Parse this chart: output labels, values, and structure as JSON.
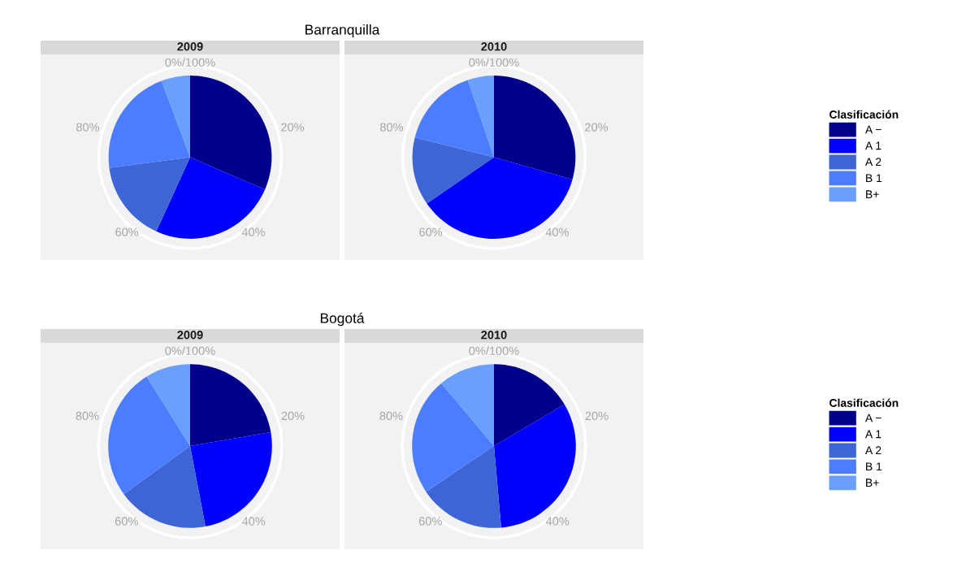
{
  "chart_data": [
    {
      "type": "pie",
      "title": "Barranquilla",
      "subtitle": "2009",
      "categories": [
        null,
        null,
        null,
        null,
        null
      ],
      "values": [
        31.5,
        25.3,
        16.1,
        21.4,
        5.7
      ],
      "colors": [
        "#00008b",
        "#0000ff",
        "#3d65d6",
        "#4d7dff",
        "#6b9fff"
      ],
      "annotations": [
        "0%/100%",
        "20%",
        "40%",
        "60%",
        "80%"
      ]
    },
    {
      "type": "pie",
      "subtitle": "2010",
      "categories": [
        "A −",
        "A 1",
        "A 2",
        "B 1",
        "B+"
      ],
      "values": [
        29.4,
        36.0,
        13.5,
        15.9,
        5.2
      ],
      "colors": [
        "#00008b",
        "#0000ff",
        "#3d65d6",
        "#4d7dff",
        "#6b9fff"
      ],
      "annotations": [
        "0%/100%",
        "20%",
        "40%",
        "60%",
        "80%"
      ],
      "legend": "right",
      "legend_title": "Clasificación"
    },
    {
      "type": "pie",
      "title": "Bogotá",
      "subtitle": "2009",
      "categories": [
        null,
        null,
        null,
        null,
        null
      ],
      "values": [
        22.3,
        24.7,
        18.0,
        26.1,
        8.9
      ],
      "colors": [
        "#00008b",
        "#0000ff",
        "#3d65d6",
        "#4d7dff",
        "#6b9fff"
      ],
      "annotations": [
        "0%/100%",
        "20%",
        "40%",
        "60%",
        "80%"
      ]
    },
    {
      "type": "pie",
      "subtitle": "2010",
      "categories": [
        "A −",
        "A 1",
        "A 2",
        "B 1",
        "B+"
      ],
      "values": [
        16.5,
        32.1,
        17.0,
        23.3,
        11.1
      ],
      "colors": [
        "#00008b",
        "#0000ff",
        "#3d65d6",
        "#4d7dff",
        "#6b9fff"
      ],
      "annotations": [
        "0%/100%",
        "20%",
        "40%",
        "60%",
        "80%"
      ],
      "legend": "right",
      "legend_title": "Clasificación"
    }
  ]
}
